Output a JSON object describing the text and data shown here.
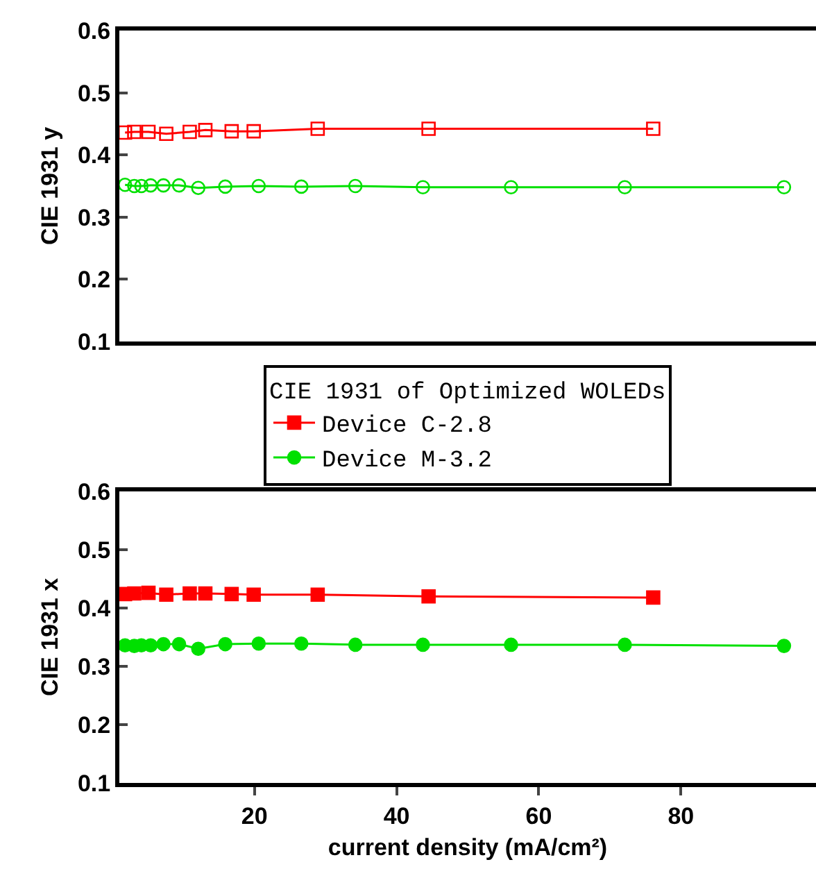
{
  "chart_data": [
    {
      "type": "line",
      "ylabel": "CIE 1931 y",
      "xlim": [
        1,
        99
      ],
      "ylim": [
        0.1,
        0.6
      ],
      "yticks": [
        0.1,
        0.2,
        0.3,
        0.4,
        0.5,
        0.6
      ],
      "tick_labels": "y",
      "grid": false,
      "legend": false,
      "line_style": "solid",
      "series": [
        {
          "color": "#ff0000",
          "marker": "square",
          "x": [
            1.8,
            3.1,
            5.1,
            7.6,
            10.9,
            13.1,
            16.8,
            19.9,
            28.9,
            44.5,
            76.1
          ],
          "values": [
            0.436,
            0.437,
            0.437,
            0.434,
            0.437,
            0.44,
            0.438,
            0.438,
            0.442,
            0.442,
            0.442
          ]
        },
        {
          "color": "#00e000",
          "marker": "circle",
          "x": [
            1.8,
            3.1,
            4.1,
            5.4,
            7.2,
            9.4,
            12.1,
            15.9,
            20.6,
            26.6,
            34.2,
            43.7,
            56.1,
            72.1,
            94.5
          ],
          "values": [
            0.352,
            0.35,
            0.35,
            0.351,
            0.351,
            0.351,
            0.347,
            0.349,
            0.35,
            0.349,
            0.35,
            0.348,
            0.348,
            0.348,
            0.348
          ]
        }
      ]
    },
    {
      "type": "line",
      "ylabel": "CIE 1931 x",
      "xlabel": "current density (mA/cm²)",
      "legend_title": "CIE 1931 of Optimized WOLEDs",
      "legend": "top",
      "xlim": [
        1,
        99
      ],
      "xticks": [
        20,
        40,
        60,
        80
      ],
      "ylim": [
        0.1,
        0.6
      ],
      "yticks": [
        0.1,
        0.2,
        0.3,
        0.4,
        0.5,
        0.6
      ],
      "grid": false,
      "line_style": "solid",
      "series": [
        {
          "name": "Device C-2.8",
          "color": "#ff0000",
          "marker": "square",
          "x": [
            1.8,
            3.1,
            5.1,
            7.6,
            10.9,
            13.1,
            16.8,
            19.9,
            28.9,
            44.5,
            76.1
          ],
          "values": [
            0.424,
            0.425,
            0.426,
            0.423,
            0.425,
            0.425,
            0.424,
            0.423,
            0.423,
            0.42,
            0.418
          ]
        },
        {
          "name": "Device M-3.2",
          "color": "#00e000",
          "marker": "circle",
          "x": [
            1.8,
            3.1,
            4.1,
            5.4,
            7.2,
            9.4,
            12.1,
            15.9,
            20.6,
            26.6,
            34.2,
            43.7,
            56.1,
            72.1,
            94.5
          ],
          "values": [
            0.336,
            0.335,
            0.336,
            0.336,
            0.338,
            0.338,
            0.33,
            0.338,
            0.339,
            0.339,
            0.337,
            0.337,
            0.337,
            0.337,
            0.335
          ]
        }
      ]
    }
  ]
}
